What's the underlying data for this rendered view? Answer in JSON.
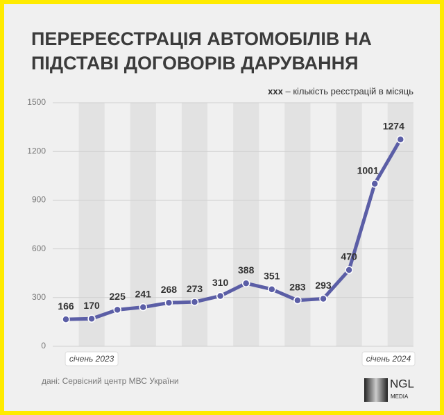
{
  "chart_data": {
    "type": "line",
    "title": [
      "ПЕРЕРЕЄСТРАЦІЯ АВТОМОБІЛІВ НА",
      "ПІДСТАВІ ДОГОВОРІВ ДАРУВАННЯ"
    ],
    "legend_note": {
      "marker": "xxx",
      "text": "– кількість реєстрацій в місяць"
    },
    "categories": [
      null,
      "січень 2023",
      null,
      null,
      null,
      null,
      null,
      null,
      null,
      null,
      null,
      null,
      null,
      "січень 2024"
    ],
    "series": [
      {
        "color": "#5b5ea6",
        "values": [
          166,
          170,
          225,
          241,
          268,
          273,
          310,
          388,
          351,
          283,
          293,
          470,
          1001,
          1274
        ]
      }
    ],
    "ylim": [
      0,
      1500
    ],
    "yticks": [
      0,
      300,
      600,
      900,
      1200,
      1500
    ],
    "grid": true,
    "source": "дані: Сервісний центр МВС України"
  },
  "logo": {
    "name": "NGL",
    "sub": "MEDIA"
  }
}
